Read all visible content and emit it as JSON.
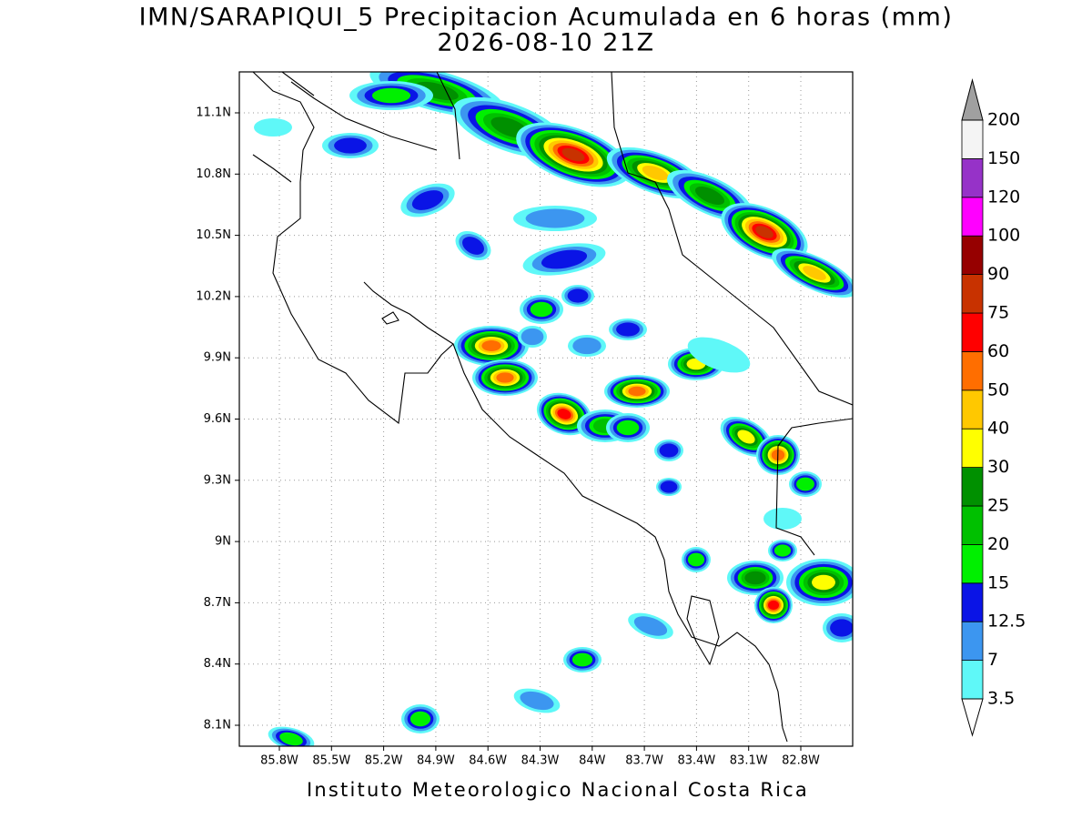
{
  "header": {
    "title": "IMN/SARAPIQUI_5 Precipitacion Acumulada en 6 horas (mm)",
    "subtitle": "2026-08-10 21Z"
  },
  "map": {
    "lat_ticks": [
      "11.1N",
      "10.8N",
      "10.5N",
      "10.2N",
      "9.9N",
      "9.6N",
      "9.3N",
      "9N",
      "8.7N",
      "8.4N",
      "8.1N"
    ],
    "lon_ticks": [
      "85.8W",
      "85.5W",
      "85.2W",
      "84.9W",
      "84.6W",
      "84.3W",
      "84W",
      "83.7W",
      "83.4W",
      "83.1W",
      "82.8W"
    ]
  },
  "colorbar": {
    "labels": [
      "3.5",
      "7",
      "12.5",
      "15",
      "20",
      "25",
      "30",
      "40",
      "50",
      "60",
      "75",
      "90",
      "100",
      "120",
      "150",
      "200"
    ],
    "colors": [
      "#5ff8f8",
      "#3c96f0",
      "#0a14e6",
      "#00f000",
      "#00c000",
      "#009000",
      "#ffff00",
      "#ffc800",
      "#ff6e00",
      "#ff0000",
      "#c83200",
      "#960000",
      "#ff00ff",
      "#9632c8",
      "#f4f4f4"
    ],
    "below_color": "#ffffff",
    "above_color": "#a0a0a0"
  },
  "footer": "Instituto Meteorologico Nacional Costa Rica"
}
